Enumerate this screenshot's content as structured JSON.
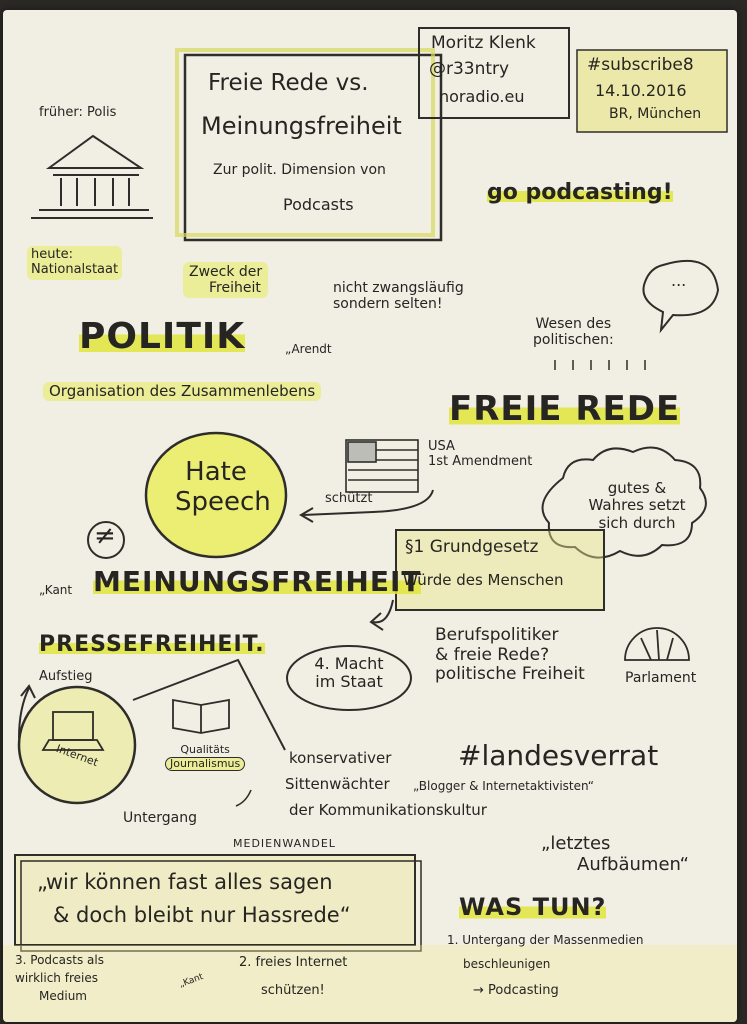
{
  "author": {
    "name": "Moritz Klenk",
    "handle": "@r33ntry",
    "site": "noradio.eu"
  },
  "event": {
    "tag": "#subscribe8",
    "date": "14.10.2016",
    "place": "BR, München"
  },
  "title": {
    "line1": "Freie Rede vs.",
    "line2": "Meinungsfreiheit",
    "line3": "Zur polit. Dimension von",
    "line4": "Podcasts"
  },
  "go_podcasting": "go podcasting!",
  "frueher": "früher: Polis",
  "heute": {
    "l1": "heute:",
    "l2": "Nationalstaat"
  },
  "zweck": {
    "l1": "Zweck der",
    "l2": "Freiheit"
  },
  "nicht": {
    "l1": "nicht zwangsläufig",
    "l2": "sondern selten!"
  },
  "speech_bubble": "...",
  "wesen": {
    "l1": "Wesen des",
    "l2": "politischen:"
  },
  "politik": "POLITIK",
  "arendt": "„Arendt",
  "organisation": "Organisation des Zusammenlebens",
  "freie_rede": "FREIE REDE",
  "usa": {
    "l1": "USA",
    "l2": "1st Amendment"
  },
  "schuetzt": "schützt",
  "hate": {
    "l1": "Hate",
    "l2": "Speech"
  },
  "gutes": {
    "l1": "gutes &",
    "l2": "Wahres setzt",
    "l3": "sich durch"
  },
  "not_equal": "≠",
  "kant": "„Kant",
  "meinungsfreiheit": "MEINUNGSFREIHEIT",
  "grundgesetz": {
    "l1": "§1 Grundgesetz",
    "l2": "Würde des Menschen"
  },
  "pressefreiheit": "PRESSEFREIHEIT.",
  "aufstieg": "Aufstieg",
  "internet": "Internet",
  "macht": {
    "l1": "4. Macht",
    "l2": "im Staat"
  },
  "berufspolitiker": {
    "l1": "Berufspolitiker",
    "l2": "& freie Rede?",
    "l3": "politische Freiheit"
  },
  "parlament": "Parlament",
  "qualitaets": {
    "l1": "Qualitäts",
    "l2": "Journalismus"
  },
  "untergang": "Untergang",
  "konservativer": {
    "l1": "konservativer",
    "l2": "Sittenwächter",
    "l3": "der Kommunikationskultur"
  },
  "landesverrat": "#landesverrat",
  "blogger": "„Blogger & Internetaktivisten“",
  "letztes": {
    "l1": "„letztes",
    "l2": "Aufbäumen“"
  },
  "medienwandel": "MEDIENWANDEL",
  "quote": {
    "l1": "„wir können fast alles sagen",
    "l2": "& doch bleibt nur Hassrede“"
  },
  "was_tun": "WAS TUN?",
  "point1": {
    "l1": "1. Untergang der Massenmedien",
    "l2": "beschleunigen",
    "l3": "→ Podcasting"
  },
  "point2": {
    "l1": "2. freies Internet",
    "l2": "schützen!"
  },
  "point3": {
    "l1": "3. Podcasts als",
    "l2": "wirklich freies",
    "l3": "Medium"
  },
  "kant2": "„Kant"
}
